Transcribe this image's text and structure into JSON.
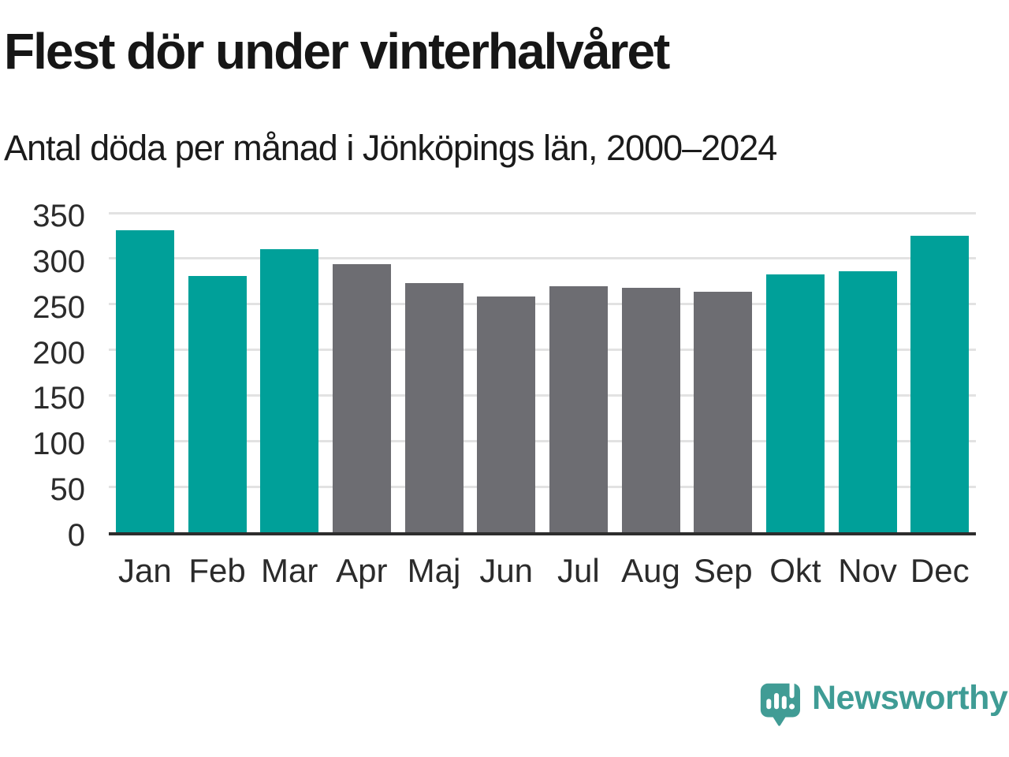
{
  "header": {
    "title": "Flest dör under vinterhalvåret",
    "subtitle": "Antal döda per månad i Jönköpings län, 2000–2024"
  },
  "chart_data": {
    "type": "bar",
    "title": "Flest dör under vinterhalvåret",
    "subtitle": "Antal döda per månad i Jönköpings län, 2000–2024",
    "categories": [
      "Jan",
      "Feb",
      "Mar",
      "Apr",
      "Maj",
      "Jun",
      "Jul",
      "Aug",
      "Sep",
      "Okt",
      "Nov",
      "Dec"
    ],
    "values": [
      331,
      281,
      310,
      294,
      273,
      258,
      270,
      268,
      264,
      283,
      286,
      325
    ],
    "series_colors": [
      "#00a099",
      "#00a099",
      "#00a099",
      "#6d6d72",
      "#6d6d72",
      "#6d6d72",
      "#6d6d72",
      "#6d6d72",
      "#6d6d72",
      "#00a099",
      "#00a099",
      "#00a099"
    ],
    "xlabel": "",
    "ylabel": "",
    "ylim": [
      0,
      350
    ],
    "yticks": [
      0,
      50,
      100,
      150,
      200,
      250,
      300,
      350
    ],
    "grid": "horizontal",
    "legend": "none",
    "colors": {
      "winter_highlight": "#00a099",
      "summer_base": "#6d6d72",
      "gridline": "#e2e2e2",
      "axis_line": "#2d2d2d",
      "text": "#161616",
      "brand_teal": "#3f9c95"
    }
  },
  "footer": {
    "brand": "Newsworthy",
    "logo_icon": "newsworthy-speech-bubble-chart-icon"
  }
}
